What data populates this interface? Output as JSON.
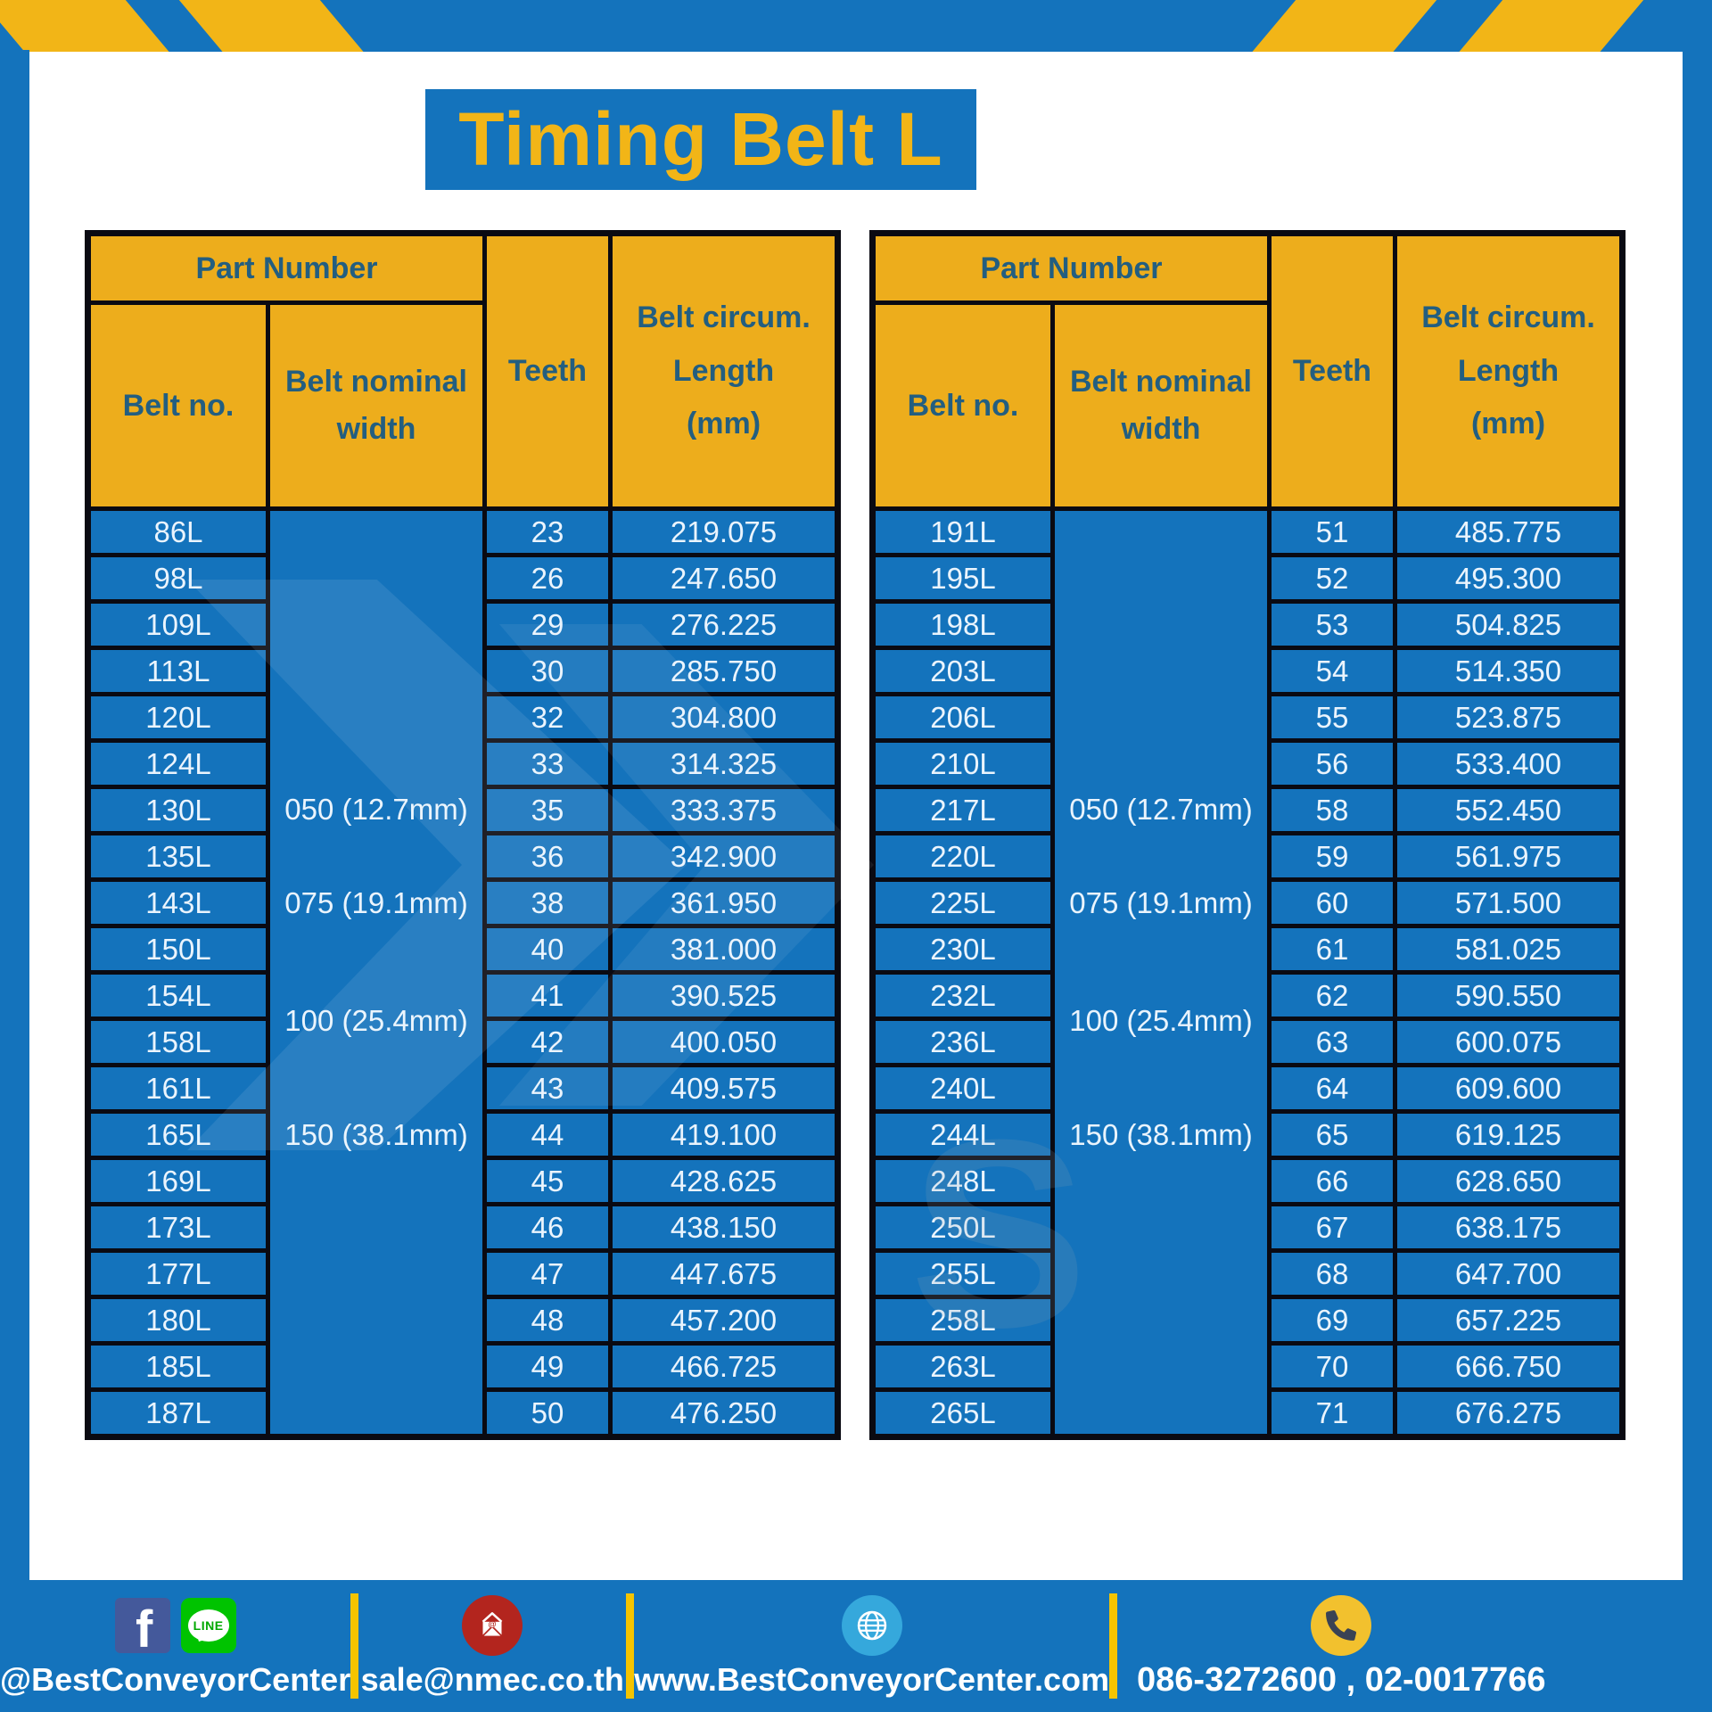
{
  "title": "Timing Belt L",
  "colors": {
    "primary_blue": "#1473BC",
    "header_gold": "#EDAD1C",
    "title_gold": "#F2B517",
    "header_text_blue": "#235E80",
    "cell_text": "#EAF4FD",
    "table_line_black": "#0A0A12",
    "divider_yellow": "#F5C400",
    "facebook_blue": "#44599B",
    "line_green": "#00C300",
    "email_red": "#B3251E",
    "globe_blue": "#35A8DC",
    "phone_yellow": "#F2C12E"
  },
  "tables": [
    {
      "headers": {
        "part_number": "Part Number",
        "belt_no": "Belt no.",
        "belt_nominal_width": "Belt nominal\nwidth",
        "teeth": "Teeth",
        "length": "Belt circum.\nLength\n(mm)"
      },
      "width_labels": [
        "050 (12.7mm)",
        "075 (19.1mm)",
        "100 (25.4mm)",
        "150 (38.1mm)"
      ],
      "rows": [
        {
          "belt_no": "86L",
          "teeth": "23",
          "length": "219.075"
        },
        {
          "belt_no": "98L",
          "teeth": "26",
          "length": "247.650"
        },
        {
          "belt_no": "109L",
          "teeth": "29",
          "length": "276.225"
        },
        {
          "belt_no": "113L",
          "teeth": "30",
          "length": "285.750"
        },
        {
          "belt_no": "120L",
          "teeth": "32",
          "length": "304.800"
        },
        {
          "belt_no": "124L",
          "teeth": "33",
          "length": "314.325"
        },
        {
          "belt_no": "130L",
          "teeth": "35",
          "length": "333.375"
        },
        {
          "belt_no": "135L",
          "teeth": "36",
          "length": "342.900"
        },
        {
          "belt_no": "143L",
          "teeth": "38",
          "length": "361.950"
        },
        {
          "belt_no": "150L",
          "teeth": "40",
          "length": "381.000"
        },
        {
          "belt_no": "154L",
          "teeth": "41",
          "length": "390.525"
        },
        {
          "belt_no": "158L",
          "teeth": "42",
          "length": "400.050"
        },
        {
          "belt_no": "161L",
          "teeth": "43",
          "length": "409.575"
        },
        {
          "belt_no": "165L",
          "teeth": "44",
          "length": "419.100"
        },
        {
          "belt_no": "169L",
          "teeth": "45",
          "length": "428.625"
        },
        {
          "belt_no": "173L",
          "teeth": "46",
          "length": "438.150"
        },
        {
          "belt_no": "177L",
          "teeth": "47",
          "length": "447.675"
        },
        {
          "belt_no": "180L",
          "teeth": "48",
          "length": "457.200"
        },
        {
          "belt_no": "185L",
          "teeth": "49",
          "length": "466.725"
        },
        {
          "belt_no": "187L",
          "teeth": "50",
          "length": "476.250"
        }
      ]
    },
    {
      "headers": {
        "part_number": "Part Number",
        "belt_no": "Belt no.",
        "belt_nominal_width": "Belt nominal\nwidth",
        "teeth": "Teeth",
        "length": "Belt circum.\nLength\n(mm)"
      },
      "width_labels": [
        "050 (12.7mm)",
        "075 (19.1mm)",
        "100 (25.4mm)",
        "150 (38.1mm)"
      ],
      "rows": [
        {
          "belt_no": "191L",
          "teeth": "51",
          "length": "485.775"
        },
        {
          "belt_no": "195L",
          "teeth": "52",
          "length": "495.300"
        },
        {
          "belt_no": "198L",
          "teeth": "53",
          "length": "504.825"
        },
        {
          "belt_no": "203L",
          "teeth": "54",
          "length": "514.350"
        },
        {
          "belt_no": "206L",
          "teeth": "55",
          "length": "523.875"
        },
        {
          "belt_no": "210L",
          "teeth": "56",
          "length": "533.400"
        },
        {
          "belt_no": "217L",
          "teeth": "58",
          "length": "552.450"
        },
        {
          "belt_no": "220L",
          "teeth": "59",
          "length": "561.975"
        },
        {
          "belt_no": "225L",
          "teeth": "60",
          "length": "571.500"
        },
        {
          "belt_no": "230L",
          "teeth": "61",
          "length": "581.025"
        },
        {
          "belt_no": "232L",
          "teeth": "62",
          "length": "590.550"
        },
        {
          "belt_no": "236L",
          "teeth": "63",
          "length": "600.075"
        },
        {
          "belt_no": "240L",
          "teeth": "64",
          "length": "609.600"
        },
        {
          "belt_no": "244L",
          "teeth": "65",
          "length": "619.125"
        },
        {
          "belt_no": "248L",
          "teeth": "66",
          "length": "628.650"
        },
        {
          "belt_no": "250L",
          "teeth": "67",
          "length": "638.175"
        },
        {
          "belt_no": "255L",
          "teeth": "68",
          "length": "647.700"
        },
        {
          "belt_no": "258L",
          "teeth": "69",
          "length": "657.225"
        },
        {
          "belt_no": "263L",
          "teeth": "70",
          "length": "666.750"
        },
        {
          "belt_no": "265L",
          "teeth": "71",
          "length": "676.275"
        }
      ]
    }
  ],
  "footer": {
    "facebook_letter": "f",
    "line_text": "LINE",
    "sections": [
      {
        "icons": [
          "facebook-icon",
          "line-icon"
        ],
        "label": "@BestConveyorCenter"
      },
      {
        "icons": [
          "email-icon"
        ],
        "label": "sale@nmec.co.th"
      },
      {
        "icons": [
          "globe-icon"
        ],
        "label": "www.BestConveyorCenter.com"
      },
      {
        "icons": [
          "phone-icon"
        ],
        "label": "086-3272600 , 02-0017766"
      }
    ]
  }
}
